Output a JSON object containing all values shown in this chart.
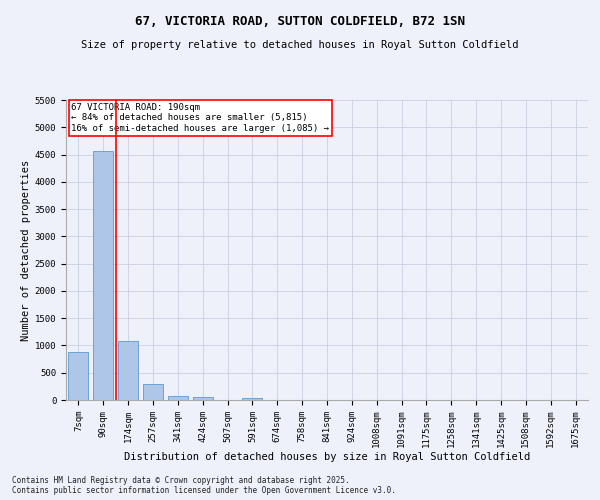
{
  "title": "67, VICTORIA ROAD, SUTTON COLDFIELD, B72 1SN",
  "subtitle": "Size of property relative to detached houses in Royal Sutton Coldfield",
  "xlabel": "Distribution of detached houses by size in Royal Sutton Coldfield",
  "ylabel": "Number of detached properties",
  "footer": "Contains HM Land Registry data © Crown copyright and database right 2025.\nContains public sector information licensed under the Open Government Licence v3.0.",
  "annotation_line1": "67 VICTORIA ROAD: 190sqm",
  "annotation_line2": "← 84% of detached houses are smaller (5,815)",
  "annotation_line3": "16% of semi-detached houses are larger (1,085) →",
  "bar_color": "#aec6e8",
  "bar_edge_color": "#5b9bd5",
  "red_line_x": 1.5,
  "ylim": [
    0,
    5500
  ],
  "yticks": [
    0,
    500,
    1000,
    1500,
    2000,
    2500,
    3000,
    3500,
    4000,
    4500,
    5000,
    5500
  ],
  "categories": [
    "7sqm",
    "90sqm",
    "174sqm",
    "257sqm",
    "341sqm",
    "424sqm",
    "507sqm",
    "591sqm",
    "674sqm",
    "758sqm",
    "841sqm",
    "924sqm",
    "1008sqm",
    "1091sqm",
    "1175sqm",
    "1258sqm",
    "1341sqm",
    "1425sqm",
    "1508sqm",
    "1592sqm",
    "1675sqm"
  ],
  "values": [
    880,
    4560,
    1075,
    295,
    68,
    48,
    0,
    40,
    0,
    0,
    0,
    0,
    0,
    0,
    0,
    0,
    0,
    0,
    0,
    0,
    0
  ],
  "background_color": "#eef1f9",
  "grid_color": "#c8d0e0",
  "title_fontsize": 9,
  "subtitle_fontsize": 7.5,
  "ylabel_fontsize": 7.5,
  "xlabel_fontsize": 7.5,
  "tick_fontsize": 6.5,
  "annotation_fontsize": 6.5,
  "footer_fontsize": 5.5
}
